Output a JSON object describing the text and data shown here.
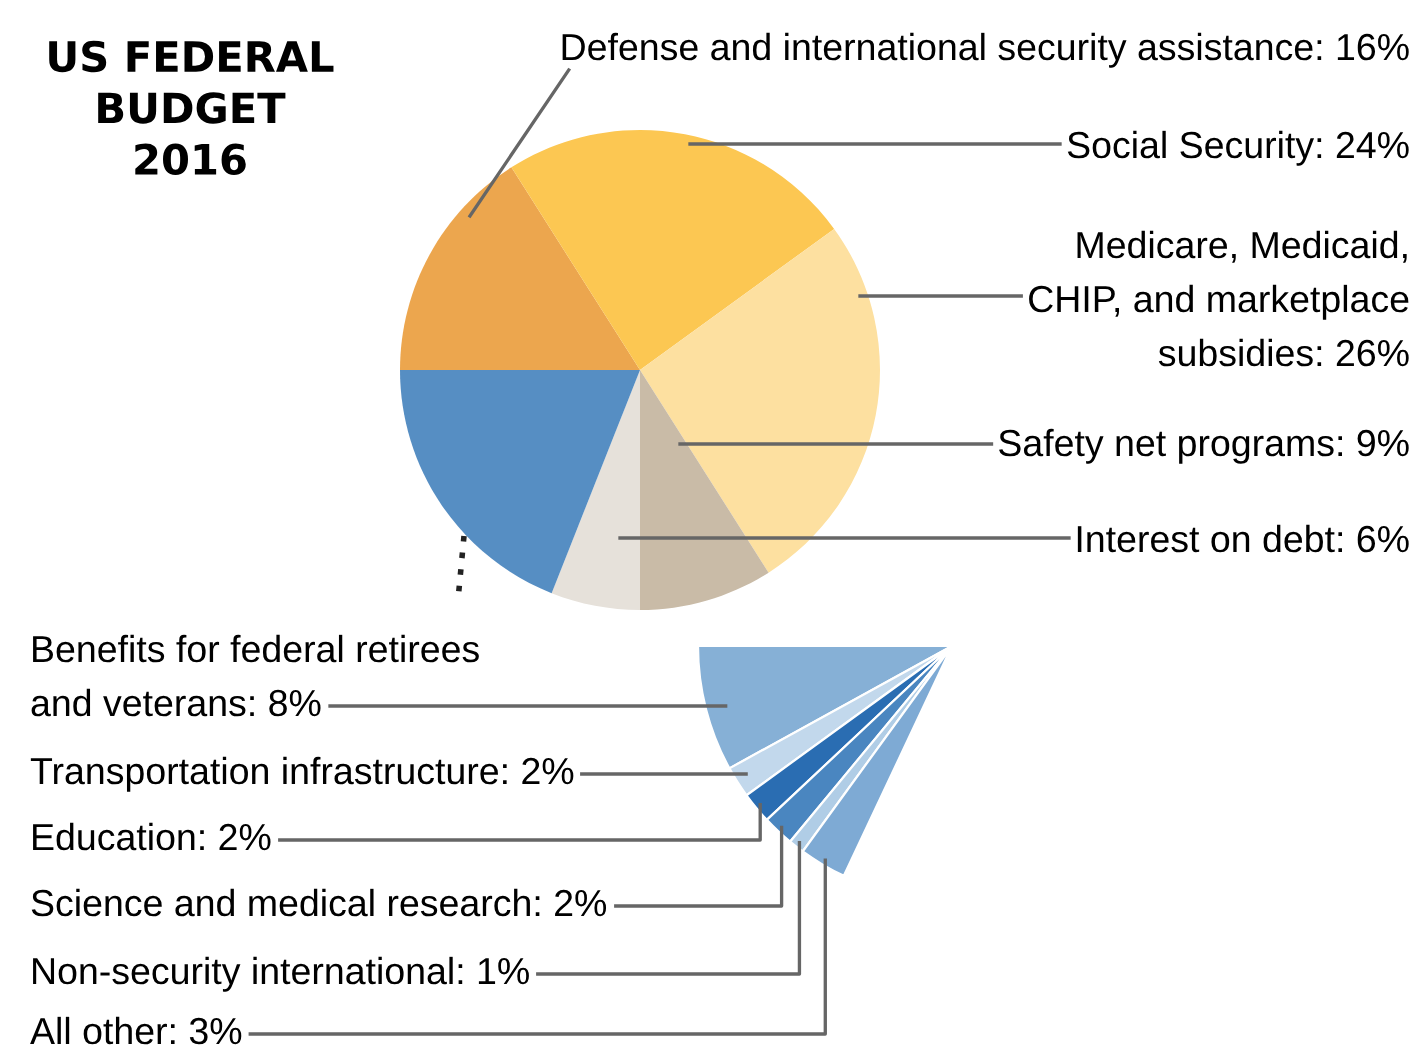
{
  "chart_data": [
    {
      "type": "pie",
      "title": "US FEDERAL\nBUDGET\n2016",
      "categories": [
        "Defense and international security assistance",
        "Social Security",
        "Medicare, Medicaid,\nCHIP, and marketplace\nsubsidies",
        "Safety net programs",
        "Interest on debt",
        null
      ],
      "values": [
        16,
        24,
        26,
        9,
        6,
        19
      ],
      "colors": [
        "#eca64e",
        "#fcc752",
        "#fde0a0",
        "#c9bba7",
        "#e6e1da",
        "#568ec3"
      ],
      "value_labels": [
        "16%",
        "24%",
        "26%",
        "9%",
        "6%",
        null
      ]
    },
    {
      "type": "pie",
      "categories": [
        "Benefits for federal retirees\nand veterans",
        "Transportation infrastructure",
        "Education",
        "Science and medical research",
        "Non-security international",
        "All other"
      ],
      "values": [
        8,
        2,
        2,
        2,
        1,
        3
      ],
      "colors": [
        "#86b0d6",
        "#c2d8ec",
        "#2a6db2",
        "#4a86c0",
        "#b0cde6",
        "#7eaad4"
      ],
      "value_labels": [
        "8%",
        "2%",
        "2%",
        "2%",
        "1%",
        "3%"
      ]
    }
  ]
}
